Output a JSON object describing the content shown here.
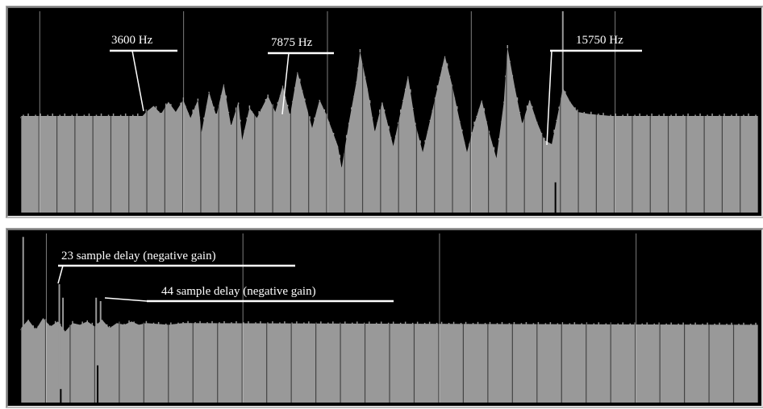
{
  "colors": {
    "background": "#000000",
    "bar_fill": "#999999",
    "bar_divider": "#5a5a5a",
    "annotation": "#ffffff"
  },
  "chart_data": [
    {
      "type": "area",
      "description_panel": "frequency-spectrum",
      "title": "",
      "xlabel": "",
      "ylabel": "",
      "baseline_level": 0.48,
      "grid_columns": 41,
      "annotations": [
        {
          "label": "3600 Hz",
          "position_fraction": 0.165
        },
        {
          "label": "7875 Hz",
          "position_fraction": 0.355
        },
        {
          "label": "15750 Hz",
          "position_fraction": 0.72
        }
      ],
      "profile": [
        [
          0.0,
          0.48
        ],
        [
          0.165,
          0.48
        ],
        [
          0.17,
          0.5
        ],
        [
          0.18,
          0.53
        ],
        [
          0.19,
          0.49
        ],
        [
          0.2,
          0.55
        ],
        [
          0.21,
          0.5
        ],
        [
          0.22,
          0.56
        ],
        [
          0.23,
          0.47
        ],
        [
          0.24,
          0.56
        ],
        [
          0.245,
          0.4
        ],
        [
          0.255,
          0.6
        ],
        [
          0.265,
          0.48
        ],
        [
          0.275,
          0.64
        ],
        [
          0.285,
          0.43
        ],
        [
          0.295,
          0.55
        ],
        [
          0.3,
          0.36
        ],
        [
          0.31,
          0.52
        ],
        [
          0.32,
          0.47
        ],
        [
          0.335,
          0.58
        ],
        [
          0.345,
          0.5
        ],
        [
          0.355,
          0.63
        ],
        [
          0.365,
          0.48
        ],
        [
          0.375,
          0.7
        ],
        [
          0.385,
          0.56
        ],
        [
          0.395,
          0.42
        ],
        [
          0.405,
          0.56
        ],
        [
          0.415,
          0.48
        ],
        [
          0.43,
          0.33
        ],
        [
          0.435,
          0.22
        ],
        [
          0.445,
          0.45
        ],
        [
          0.455,
          0.65
        ],
        [
          0.46,
          0.8
        ],
        [
          0.47,
          0.62
        ],
        [
          0.48,
          0.4
        ],
        [
          0.49,
          0.55
        ],
        [
          0.505,
          0.33
        ],
        [
          0.515,
          0.5
        ],
        [
          0.525,
          0.68
        ],
        [
          0.535,
          0.44
        ],
        [
          0.545,
          0.3
        ],
        [
          0.555,
          0.46
        ],
        [
          0.565,
          0.62
        ],
        [
          0.575,
          0.78
        ],
        [
          0.585,
          0.63
        ],
        [
          0.595,
          0.46
        ],
        [
          0.605,
          0.3
        ],
        [
          0.615,
          0.44
        ],
        [
          0.625,
          0.56
        ],
        [
          0.635,
          0.4
        ],
        [
          0.645,
          0.27
        ],
        [
          0.655,
          0.55
        ],
        [
          0.66,
          0.82
        ],
        [
          0.67,
          0.62
        ],
        [
          0.68,
          0.44
        ],
        [
          0.69,
          0.56
        ],
        [
          0.7,
          0.45
        ],
        [
          0.71,
          0.36
        ],
        [
          0.72,
          0.34
        ],
        [
          0.73,
          0.52
        ],
        [
          0.735,
          0.62
        ],
        [
          0.745,
          0.55
        ],
        [
          0.755,
          0.5
        ],
        [
          0.77,
          0.49
        ],
        [
          0.8,
          0.48
        ],
        [
          1.0,
          0.48
        ]
      ],
      "spikes": [
        {
          "position_fraction": 0.735,
          "level": 1.0
        },
        {
          "position_fraction": 0.725,
          "level": 0.15
        }
      ]
    },
    {
      "type": "area",
      "description_panel": "impulse-response",
      "title": "",
      "xlabel": "",
      "ylabel": "",
      "baseline_level": 0.46,
      "grid_columns": 30,
      "annotations": [
        {
          "label": "23 sample delay (negative gain)",
          "position_fraction": 0.055
        },
        {
          "label": "44 sample delay (negative gain)",
          "position_fraction": 0.105
        }
      ],
      "profile": [
        [
          0.0,
          0.44
        ],
        [
          0.01,
          0.49
        ],
        [
          0.02,
          0.43
        ],
        [
          0.03,
          0.5
        ],
        [
          0.04,
          0.45
        ],
        [
          0.05,
          0.48
        ],
        [
          0.06,
          0.42
        ],
        [
          0.07,
          0.47
        ],
        [
          0.08,
          0.46
        ],
        [
          0.09,
          0.48
        ],
        [
          0.1,
          0.45
        ],
        [
          0.11,
          0.49
        ],
        [
          0.12,
          0.44
        ],
        [
          0.13,
          0.47
        ],
        [
          0.14,
          0.46
        ],
        [
          0.15,
          0.48
        ],
        [
          0.16,
          0.46
        ],
        [
          0.17,
          0.47
        ],
        [
          0.2,
          0.46
        ],
        [
          0.22,
          0.47
        ],
        [
          1.0,
          0.46
        ]
      ],
      "spikes": [
        {
          "position_fraction": 0.003,
          "level": 0.98
        },
        {
          "position_fraction": 0.052,
          "level": 0.7
        },
        {
          "position_fraction": 0.054,
          "level": 0.08
        },
        {
          "position_fraction": 0.057,
          "level": 0.62
        },
        {
          "position_fraction": 0.102,
          "level": 0.62
        },
        {
          "position_fraction": 0.104,
          "level": 0.22
        },
        {
          "position_fraction": 0.108,
          "level": 0.6
        }
      ]
    }
  ]
}
